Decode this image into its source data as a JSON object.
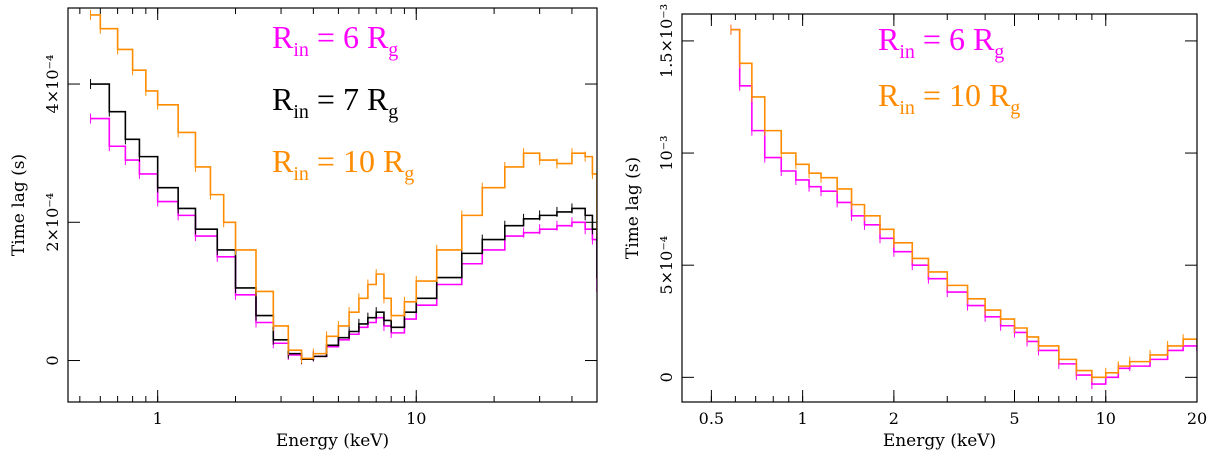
{
  "colors": {
    "magenta": "#ff00ff",
    "black": "#000000",
    "orange": "#ff8c00"
  },
  "chart_data": [
    {
      "type": "line",
      "xscale": "log",
      "xlim": [
        0.45,
        50
      ],
      "ylim": [
        -6e-05,
        0.00051
      ],
      "xlabel": "Energy (keV)",
      "ylabel": "Time lag (s)",
      "xticks": [
        {
          "value": 1,
          "label": "1"
        },
        {
          "value": 10,
          "label": "10"
        }
      ],
      "yticks": [
        {
          "value": 0,
          "label": "0"
        },
        {
          "value": 0.0002,
          "label": "2×10⁻⁴"
        },
        {
          "value": 0.0004,
          "label": "4×10⁻⁴"
        }
      ],
      "legend": [
        {
          "pre": "R",
          "sub": "in",
          "mid": " = 6 R",
          "sub2": "g",
          "color": "#ff00ff"
        },
        {
          "pre": "R",
          "sub": "in",
          "mid": " = 7 R",
          "sub2": "g",
          "color": "#000000"
        },
        {
          "pre": "R",
          "sub": "in",
          "mid": " = 10 R",
          "sub2": "g",
          "color": "#ff8c00"
        }
      ],
      "series": [
        {
          "name": "R_in = 6 R_g",
          "color": "#ff00ff",
          "x": [
            0.55,
            0.65,
            0.75,
            0.85,
            1.0,
            1.2,
            1.4,
            1.7,
            2.0,
            2.4,
            2.8,
            3.2,
            3.6,
            4.0,
            4.5,
            5.0,
            5.5,
            6.0,
            6.5,
            7.0,
            7.5,
            8.0,
            9.0,
            10,
            12,
            15,
            18,
            22,
            26,
            30,
            35,
            40,
            45,
            48,
            50
          ],
          "y": [
            0.00035,
            0.00031,
            0.00029,
            0.00027,
            0.00023,
            0.00021,
            0.00018,
            0.00015,
            9.5e-05,
            5.5e-05,
            2.5e-05,
            8e-06,
            2e-06,
            6e-06,
            2e-05,
            3e-05,
            3.8e-05,
            4.8e-05,
            5.5e-05,
            6.2e-05,
            5e-05,
            4e-05,
            6e-05,
            8e-05,
            0.00011,
            0.00014,
            0.00016,
            0.00018,
            0.000185,
            0.00019,
            0.000195,
            0.0002,
            0.00019,
            0.000175,
            0.0001
          ]
        },
        {
          "name": "R_in = 7 R_g",
          "color": "#000000",
          "x": [
            0.55,
            0.65,
            0.75,
            0.85,
            1.0,
            1.2,
            1.4,
            1.7,
            2.0,
            2.4,
            2.8,
            3.2,
            3.6,
            4.0,
            4.5,
            5.0,
            5.5,
            6.0,
            6.5,
            7.0,
            7.5,
            8.0,
            9.0,
            10,
            12,
            15,
            18,
            22,
            26,
            30,
            35,
            40,
            45,
            48,
            50
          ],
          "y": [
            0.0004,
            0.00036,
            0.00032,
            0.000295,
            0.00025,
            0.00022,
            0.00019,
            0.00016,
            0.000105,
            6.5e-05,
            3e-05,
            1e-05,
            2e-06,
            6e-06,
            2.2e-05,
            3.3e-05,
            4.2e-05,
            5.3e-05,
            6.2e-05,
            7e-05,
            5.8e-05,
            4.8e-05,
            7e-05,
            9e-05,
            0.00012,
            0.000155,
            0.000175,
            0.000195,
            0.000205,
            0.00021,
            0.000215,
            0.00022,
            0.00021,
            0.00019,
            0.00012
          ]
        },
        {
          "name": "R_in = 10 R_g",
          "color": "#ff8c00",
          "x": [
            0.55,
            0.6,
            0.7,
            0.8,
            0.9,
            1.0,
            1.2,
            1.4,
            1.6,
            1.8,
            2.0,
            2.4,
            2.8,
            3.2,
            3.6,
            4.0,
            4.5,
            5.0,
            5.5,
            6.0,
            6.5,
            7.0,
            7.5,
            8.0,
            9.0,
            10,
            12,
            15,
            18,
            22,
            26,
            30,
            35,
            40,
            45,
            48,
            50
          ],
          "y": [
            0.0005,
            0.00048,
            0.00045,
            0.00042,
            0.00039,
            0.00037,
            0.00033,
            0.00028,
            0.00024,
            0.0002,
            0.00016,
            0.0001,
            5e-05,
            1.5e-05,
            3e-06,
            1e-05,
            3.5e-05,
            5e-05,
            7e-05,
            9e-05,
            0.00011,
            0.000125,
            9e-05,
            6.5e-05,
            8.5e-05,
            0.000115,
            0.00016,
            0.00021,
            0.00025,
            0.00028,
            0.0003,
            0.00029,
            0.000285,
            0.0003,
            0.000295,
            0.00027,
            0.00018
          ]
        }
      ]
    },
    {
      "type": "line",
      "xscale": "log",
      "xlim": [
        0.4,
        20
      ],
      "ylim": [
        -0.00011,
        0.00162
      ],
      "xlabel": "Energy (keV)",
      "ylabel": "Time lag (s)",
      "xticks": [
        {
          "value": 0.5,
          "label": "0.5"
        },
        {
          "value": 1,
          "label": "1"
        },
        {
          "value": 2,
          "label": "2"
        },
        {
          "value": 5,
          "label": "5"
        },
        {
          "value": 10,
          "label": "10"
        },
        {
          "value": 20,
          "label": "20"
        }
      ],
      "yticks": [
        {
          "value": 0,
          "label": "0"
        },
        {
          "value": 0.0005,
          "label": "5×10⁻⁴"
        },
        {
          "value": 0.001,
          "label": "10⁻³"
        },
        {
          "value": 0.0015,
          "label": "1.5×10⁻³"
        }
      ],
      "legend": [
        {
          "pre": "R",
          "sub": "in",
          "mid": " = 6 R",
          "sub2": "g",
          "color": "#ff00ff"
        },
        {
          "pre": "R",
          "sub": "in",
          "mid": " = 10 R",
          "sub2": "g",
          "color": "#ff8c00"
        }
      ],
      "series": [
        {
          "name": "R_in = 6 R_g",
          "color": "#ff00ff",
          "x": [
            0.58,
            0.62,
            0.68,
            0.75,
            0.85,
            0.95,
            1.05,
            1.15,
            1.3,
            1.45,
            1.6,
            1.8,
            2.0,
            2.3,
            2.6,
            3.0,
            3.5,
            4.0,
            4.5,
            5.0,
            5.5,
            6.0,
            7.0,
            8.0,
            9.0,
            10,
            11,
            12,
            14,
            16,
            18,
            20
          ],
          "y": [
            0.00155,
            0.0013,
            0.0011,
            0.00098,
            0.00092,
            0.00088,
            0.00085,
            0.00083,
            0.00078,
            0.00072,
            0.00068,
            0.00062,
            0.00056,
            0.0005,
            0.00044,
            0.00038,
            0.00032,
            0.00027,
            0.00023,
            0.0002,
            0.00016,
            0.00012,
            6e-05,
            1e-05,
            -3e-05,
            0.0,
            4e-05,
            5e-05,
            8e-05,
            0.00012,
            0.00014,
            0.00012
          ]
        },
        {
          "name": "R_in = 10 R_g",
          "color": "#ff8c00",
          "x": [
            0.58,
            0.62,
            0.68,
            0.75,
            0.85,
            0.95,
            1.05,
            1.15,
            1.3,
            1.45,
            1.6,
            1.8,
            2.0,
            2.3,
            2.6,
            3.0,
            3.5,
            4.0,
            4.5,
            5.0,
            5.5,
            6.0,
            7.0,
            8.0,
            9.0,
            10,
            11,
            12,
            14,
            16,
            18,
            20
          ],
          "y": [
            0.00155,
            0.0014,
            0.00125,
            0.0011,
            0.001,
            0.00095,
            0.00091,
            0.00089,
            0.00084,
            0.00077,
            0.00072,
            0.00066,
            0.0006,
            0.00053,
            0.00047,
            0.00041,
            0.00035,
            0.0003,
            0.00026,
            0.00022,
            0.00018,
            0.00014,
            8e-05,
            3e-05,
            0.0,
            2e-05,
            5e-05,
            7e-05,
            0.0001,
            0.00014,
            0.00017,
            0.00015
          ]
        }
      ]
    }
  ]
}
